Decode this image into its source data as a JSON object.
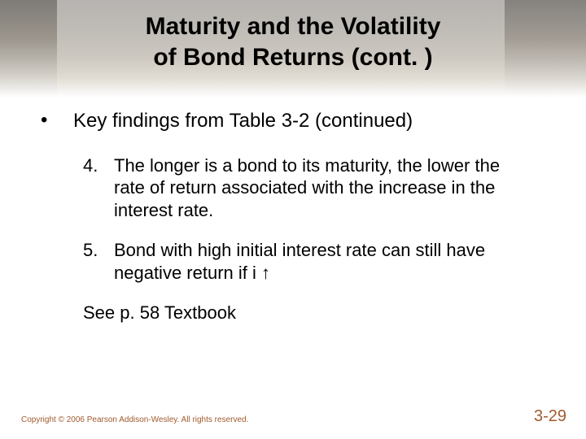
{
  "title_line1": "Maturity and the Volatility",
  "title_line2": "of Bond Returns (cont. )",
  "main_bullet": "Key findings from Table 3-2 (continued)",
  "items": [
    {
      "num": "4.",
      "text": "The longer is a bond to its maturity, the lower the rate of return associated with the increase in the interest rate."
    },
    {
      "num": "5.",
      "text": "Bond with high initial interest rate can still have negative return if i "
    }
  ],
  "arrow_glyph": "↑",
  "see_text": "See p. 58 Textbook",
  "copyright": "Copyright © 2006 Pearson Addison-Wesley. All rights reserved.",
  "page_number": "3-29",
  "colors": {
    "text": "#000000",
    "accent": "#a05a2c",
    "band_top": "#7a7570",
    "band_bottom": "#ffffff"
  }
}
